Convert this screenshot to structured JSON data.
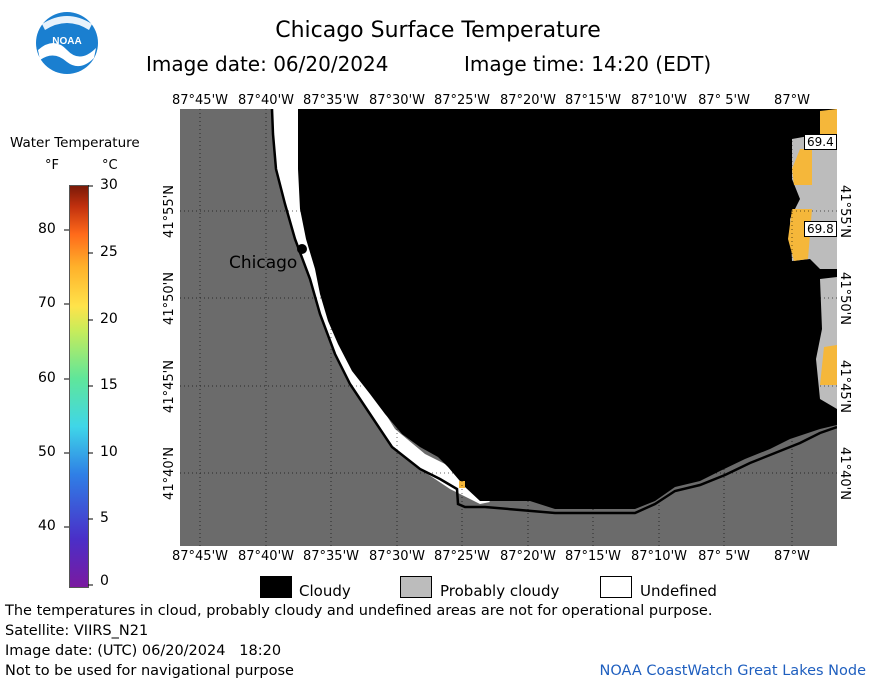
{
  "header": {
    "title": "Chicago Surface Temperature",
    "image_date_label": "Image date: 06/20/2024",
    "image_time_label": "Image time: 14:20 (EDT)"
  },
  "logo": {
    "text": "NOAA",
    "color": "#1a7fd0"
  },
  "colorbar": {
    "title": "Water Temperature",
    "unit_f": "°F",
    "unit_c": "°C",
    "f_ticks": [
      "80",
      "70",
      "60",
      "50",
      "40"
    ],
    "c_ticks": [
      "30",
      "25",
      "20",
      "15",
      "10",
      "5",
      "0"
    ]
  },
  "map": {
    "lon_labels_top": [
      "87°45'W",
      "87°40'W",
      "87°35'W",
      "87°30'W",
      "87°25'W",
      "87°20'W",
      "87°15'W",
      "87°10'W",
      "87° 5'W",
      "87°W"
    ],
    "lon_labels_bottom": [
      "87°45'W",
      "87°40'W",
      "87°35'W",
      "87°30'W",
      "87°25'W",
      "87°20'W",
      "87°15'W",
      "87°10'W",
      "87° 5'W",
      "87°W"
    ],
    "lat_labels_left": [
      "41°55'N",
      "41°50'N",
      "41°45'N",
      "41°40'N"
    ],
    "lat_labels_right": [
      "41°55'N",
      "41°50'N",
      "41°45'N",
      "41°40'N"
    ],
    "city_label": "Chicago",
    "temp_labels": [
      "69.4",
      "69.8"
    ],
    "land_color": "#6b6b6b",
    "cloud_color": "#000000",
    "warm_water_color": "#f5b73a"
  },
  "legend": {
    "cloudy": "Cloudy",
    "probably_cloudy": "Probably cloudy",
    "undefined": "Undefined"
  },
  "footer": {
    "disclaimer": "The temperatures in cloud, probably cloudy and undefined areas are not for operational purpose.",
    "satellite": "Satellite: VIIRS_N21",
    "utc_date": "Image date: (UTC) 06/20/2024   18:20",
    "nav_warning": "Not to be used for navigational purpose",
    "credit": "NOAA CoastWatch Great Lakes Node",
    "credit_color": "#1f5fbf"
  }
}
